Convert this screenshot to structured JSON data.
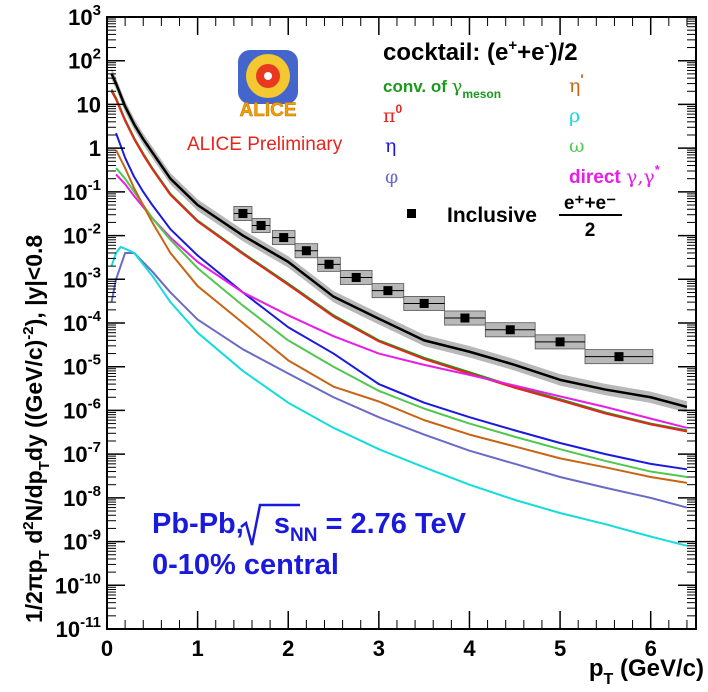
{
  "chart_data": {
    "type": "line",
    "title": "",
    "xlabel": "p_T (GeV/c)",
    "xlabel_parts": {
      "main": "p",
      "sub": "T",
      "unit": " (GeV/c)"
    },
    "ylabel": "1/2πp_T d²N/dp_Tdy ((GeV/c)⁻²), |y|<0.8",
    "ylabel_parts": [
      "1/2πp",
      "T",
      " d",
      "2",
      "N/dp",
      "T",
      "dy ((GeV/c)",
      "-2",
      "), |y|<0.8"
    ],
    "xlim": [
      0,
      6.5
    ],
    "ylim_log10": [
      -11,
      3
    ],
    "yscale": "log",
    "x_ticks": [
      "0",
      "1",
      "2",
      "3",
      "4",
      "5",
      "6"
    ],
    "y_ticks": [
      {
        "base": "10",
        "exp": "-11"
      },
      {
        "base": "10",
        "exp": "-10"
      },
      {
        "base": "10",
        "exp": "-9"
      },
      {
        "base": "10",
        "exp": "-8"
      },
      {
        "base": "10",
        "exp": "-7"
      },
      {
        "base": "10",
        "exp": "-6"
      },
      {
        "base": "10",
        "exp": "-5"
      },
      {
        "base": "10",
        "exp": "-4"
      },
      {
        "base": "10",
        "exp": "-3"
      },
      {
        "base": "10",
        "exp": "-2"
      },
      {
        "base": "10",
        "exp": "-1"
      },
      {
        "base": "",
        "exp": "",
        "text": "1"
      },
      {
        "base": "10",
        "exp": "",
        "text": "10"
      },
      {
        "base": "10",
        "exp": "2"
      },
      {
        "base": "10",
        "exp": "3"
      }
    ],
    "grid": false,
    "legend_placement": "top-right",
    "legend": {
      "header": {
        "text": "cocktail: (e",
        "sup1": "+",
        "mid": "+e",
        "sup2": "-",
        "tail": ")/2"
      },
      "entries": [
        {
          "key": "conv",
          "text": "conv. of ",
          "sym": "γ",
          "sub": "meson",
          "color": "#1a9a1a"
        },
        {
          "key": "pi0",
          "text": "",
          "sym": "π",
          "sup": "0",
          "color": "#e8251c"
        },
        {
          "key": "eta",
          "text": "",
          "sym": "η",
          "color": "#1a1adc"
        },
        {
          "key": "phi",
          "text": "",
          "sym": "φ",
          "color": "#6a6ac8"
        },
        {
          "key": "etap",
          "text": "",
          "sym": "η",
          "sup": "'",
          "color": "#c86414"
        },
        {
          "key": "rho",
          "text": "",
          "sym": "ρ",
          "color": "#14dcdc"
        },
        {
          "key": "omega",
          "text": "",
          "sym": "ω",
          "color": "#50c850"
        },
        {
          "key": "direct",
          "text": "direct ",
          "sym": "γ,γ",
          "sup": "*",
          "color": "#e61ee6"
        }
      ],
      "inclusive": {
        "text": "Inclusive ",
        "num": "e⁺+e⁻",
        "den": "2"
      }
    },
    "logo": {
      "name": "ALICE",
      "caption": "ALICE Preliminary",
      "caption_color": "#e8251c"
    },
    "annotations": {
      "system_prefix": "Pb-Pb,",
      "sqrt_s": "s",
      "sqrt_sub": "NN",
      "energy": " = 2.76 TeV",
      "centrality": "0-10% central",
      "color": "#1a1adc"
    },
    "series": [
      {
        "key": "sum",
        "color": "#000000",
        "band": true,
        "x": [
          0.05,
          0.1,
          0.2,
          0.3,
          0.4,
          0.5,
          0.7,
          1.0,
          1.5,
          2.0,
          2.5,
          3.0,
          3.5,
          4.0,
          4.5,
          5.0,
          5.5,
          6.0,
          6.4
        ],
        "y": [
          50,
          30,
          9,
          3.5,
          1.6,
          0.8,
          0.2,
          0.05,
          0.01,
          0.0025,
          0.0004,
          0.000125,
          4e-05,
          2.2e-05,
          1.1e-05,
          5e-06,
          3e-06,
          2e-06,
          1.2e-06
        ]
      },
      {
        "key": "conv",
        "color": "#1a9a1a",
        "x": [
          0.05,
          0.1,
          0.2,
          0.3,
          0.4,
          0.5,
          0.7,
          1.0,
          1.5,
          2.0,
          2.5,
          3.0,
          3.5,
          4.0,
          4.5,
          5.0,
          5.5,
          6.0,
          6.4
        ],
        "y": [
          22,
          14,
          4.5,
          1.7,
          0.75,
          0.35,
          0.09,
          0.022,
          0.004,
          0.0008,
          0.00015,
          4e-05,
          1.6e-05,
          7.5e-06,
          3.5e-06,
          1.8e-06,
          9e-07,
          5e-07,
          3.5e-07
        ]
      },
      {
        "key": "pi0",
        "color": "#e8251c",
        "x": [
          0.05,
          0.1,
          0.2,
          0.3,
          0.4,
          0.5,
          0.7,
          1.0,
          1.5,
          2.0,
          2.5,
          3.0,
          3.5,
          4.0,
          4.5,
          5.0,
          5.5,
          6.0,
          6.4
        ],
        "y": [
          20,
          13,
          4.2,
          1.6,
          0.7,
          0.33,
          0.085,
          0.021,
          0.0038,
          0.00075,
          0.00014,
          3.8e-05,
          1.5e-05,
          7e-06,
          3.3e-06,
          1.7e-06,
          8.5e-07,
          4.8e-07,
          3.3e-07
        ]
      },
      {
        "key": "eta",
        "color": "#1a1adc",
        "x": [
          0.1,
          0.2,
          0.3,
          0.4,
          0.5,
          0.7,
          1.0,
          1.5,
          2.0,
          2.5,
          3.0,
          3.5,
          4.0,
          4.5,
          5.0,
          5.5,
          6.0,
          6.4
        ],
        "y": [
          2.2,
          0.6,
          0.22,
          0.1,
          0.05,
          0.014,
          0.0035,
          0.0005,
          8e-05,
          2e-05,
          4e-06,
          1.5e-06,
          7e-07,
          3.5e-07,
          1.8e-07,
          1e-07,
          6e-08,
          4.5e-08
        ]
      },
      {
        "key": "direct",
        "color": "#e61ee6",
        "x": [
          0.1,
          0.2,
          0.3,
          0.5,
          0.7,
          1.0,
          1.5,
          2.0,
          2.5,
          3.0,
          3.5,
          4.0,
          4.5,
          5.0,
          5.5,
          6.0,
          6.4
        ],
        "y": [
          0.25,
          0.15,
          0.08,
          0.025,
          0.009,
          0.0025,
          0.0005,
          0.00015,
          5e-05,
          2e-05,
          1.1e-05,
          6.5e-06,
          3.7e-06,
          2.1e-06,
          1.2e-06,
          6.5e-07,
          4e-07
        ]
      },
      {
        "key": "omega",
        "color": "#50c850",
        "x": [
          0.1,
          0.2,
          0.3,
          0.5,
          0.7,
          1.0,
          1.5,
          2.0,
          2.5,
          3.0,
          3.5,
          4.0,
          4.5,
          5.0,
          5.5,
          6.0,
          6.4
        ],
        "y": [
          0.35,
          0.2,
          0.1,
          0.025,
          0.008,
          0.0018,
          0.00025,
          4e-05,
          1e-05,
          2.8e-06,
          1.1e-06,
          5e-07,
          2.5e-07,
          1.3e-07,
          7e-08,
          4e-08,
          3e-08
        ]
      },
      {
        "key": "etap",
        "color": "#c86414",
        "x": [
          0.1,
          0.2,
          0.3,
          0.5,
          0.7,
          1.0,
          1.5,
          2.0,
          2.5,
          3.0,
          3.5,
          4.0,
          4.5,
          5.0,
          5.5,
          6.0,
          6.4
        ],
        "y": [
          0.9,
          0.35,
          0.12,
          0.02,
          0.004,
          0.0007,
          0.0001,
          1.4e-05,
          3.5e-06,
          1.6e-06,
          6e-07,
          2.8e-07,
          1.5e-07,
          8e-08,
          5e-08,
          3e-08,
          2.2e-08
        ]
      },
      {
        "key": "phi",
        "color": "#6a6ac8",
        "x": [
          0.05,
          0.1,
          0.2,
          0.3,
          0.5,
          0.7,
          1.0,
          1.5,
          2.0,
          2.5,
          3.0,
          3.5,
          4.0,
          4.5,
          5.0,
          5.5,
          6.0,
          6.4
        ],
        "y": [
          0.0003,
          0.001,
          0.004,
          0.004,
          0.0015,
          0.0005,
          0.00012,
          2.5e-05,
          7e-06,
          2e-06,
          7e-07,
          2.8e-07,
          1.2e-07,
          6e-08,
          3e-08,
          1.7e-08,
          1e-08,
          6e-09
        ]
      },
      {
        "key": "rho",
        "color": "#14dcdc",
        "x": [
          0.05,
          0.1,
          0.15,
          0.2,
          0.3,
          0.5,
          0.7,
          1.0,
          1.5,
          2.0,
          2.5,
          3.0,
          3.5,
          4.0,
          4.5,
          5.0,
          5.5,
          6.0,
          6.4
        ],
        "y": [
          0.002,
          0.004,
          0.0055,
          0.005,
          0.004,
          0.0012,
          0.0003,
          6e-05,
          8e-06,
          1.5e-06,
          4e-07,
          1.3e-07,
          5e-08,
          2e-08,
          9e-09,
          4.5e-09,
          2.5e-09,
          1.3e-09,
          8e-10
        ]
      }
    ],
    "inclusive_points": {
      "marker": "square",
      "color": "#000000",
      "x": [
        1.5,
        1.7,
        1.95,
        2.2,
        2.45,
        2.75,
        3.1,
        3.5,
        3.95,
        4.45,
        5.0,
        5.65
      ],
      "xerr": [
        0.1,
        0.1,
        0.125,
        0.125,
        0.125,
        0.175,
        0.175,
        0.225,
        0.225,
        0.275,
        0.275,
        0.375
      ],
      "y": [
        0.032,
        0.017,
        0.009,
        0.0045,
        0.0022,
        0.0011,
        0.00055,
        0.00028,
        0.00013,
        7e-05,
        3.7e-05,
        1.7e-05
      ]
    }
  }
}
